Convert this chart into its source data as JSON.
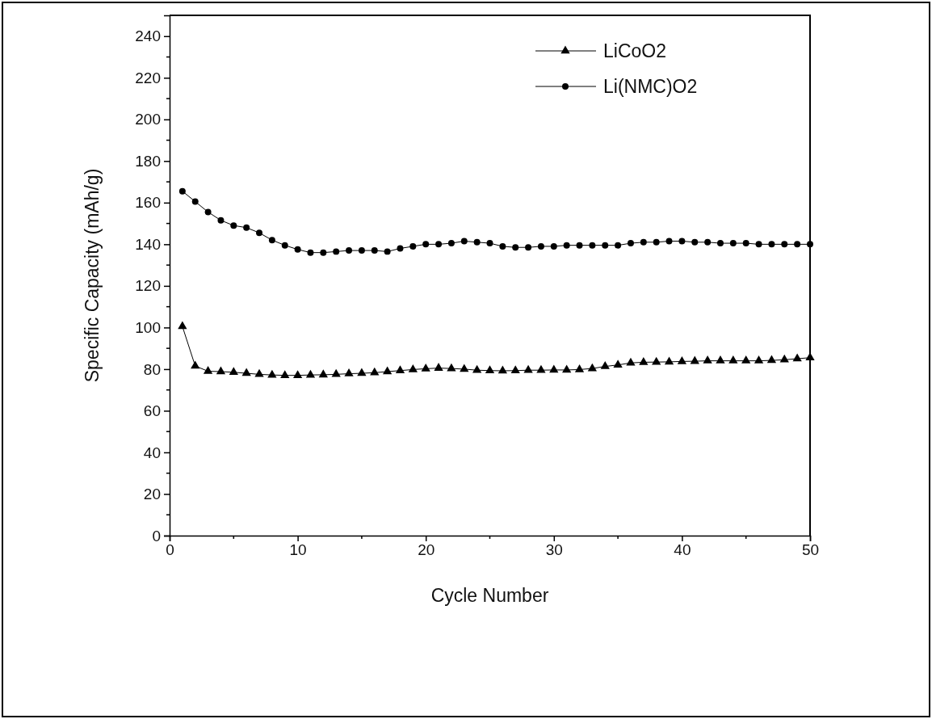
{
  "chart_data": {
    "type": "line",
    "xlabel": "Cycle Number",
    "ylabel": "Specific Capacity (mAh/g)",
    "x": [
      1,
      2,
      3,
      4,
      5,
      6,
      7,
      8,
      9,
      10,
      11,
      12,
      13,
      14,
      15,
      16,
      17,
      18,
      19,
      20,
      21,
      22,
      23,
      24,
      25,
      26,
      27,
      28,
      29,
      30,
      31,
      32,
      33,
      34,
      35,
      36,
      37,
      38,
      39,
      40,
      41,
      42,
      43,
      44,
      45,
      46,
      47,
      48,
      49,
      50
    ],
    "series": [
      {
        "name": "LiCoO2",
        "color": "#000000",
        "marker": "triangle",
        "values": [
          100.5,
          81.5,
          79,
          78.8,
          78.5,
          78,
          77.5,
          77.2,
          77,
          77,
          77.2,
          77.3,
          77.5,
          77.8,
          78,
          78.3,
          78.8,
          79.3,
          79.8,
          80.2,
          80.5,
          80.3,
          80,
          79.5,
          79.3,
          79.2,
          79.3,
          79.5,
          79.5,
          79.6,
          79.6,
          79.8,
          80.3,
          81.3,
          82,
          83,
          83.3,
          83.4,
          83.5,
          83.7,
          83.8,
          84,
          84,
          84,
          84,
          84,
          84.2,
          84.5,
          85,
          85.5
        ]
      },
      {
        "name": "Li(NMC)O2",
        "color": "#000000",
        "marker": "circle",
        "values": [
          165.5,
          160.5,
          155.5,
          151.5,
          149,
          148,
          145.5,
          142,
          139.5,
          137.5,
          136,
          136,
          136.5,
          137,
          137,
          137,
          136.5,
          138,
          139,
          140,
          140,
          140.5,
          141.5,
          141,
          140.5,
          139,
          138.5,
          138.5,
          139,
          139,
          139.5,
          139.5,
          139.5,
          139.5,
          139.5,
          140.5,
          141,
          141,
          141.5,
          141.5,
          141,
          141,
          140.5,
          140.5,
          140.5,
          140,
          140,
          140,
          140,
          140
        ]
      }
    ],
    "xlim": [
      0,
      50
    ],
    "xticks": [
      0,
      10,
      20,
      30,
      40,
      50
    ],
    "ylim": [
      0,
      250
    ],
    "yticks": [
      0,
      20,
      40,
      60,
      80,
      100,
      120,
      140,
      160,
      180,
      200,
      220,
      240
    ],
    "grid": false,
    "legend": "top right",
    "line_style": "solid"
  }
}
